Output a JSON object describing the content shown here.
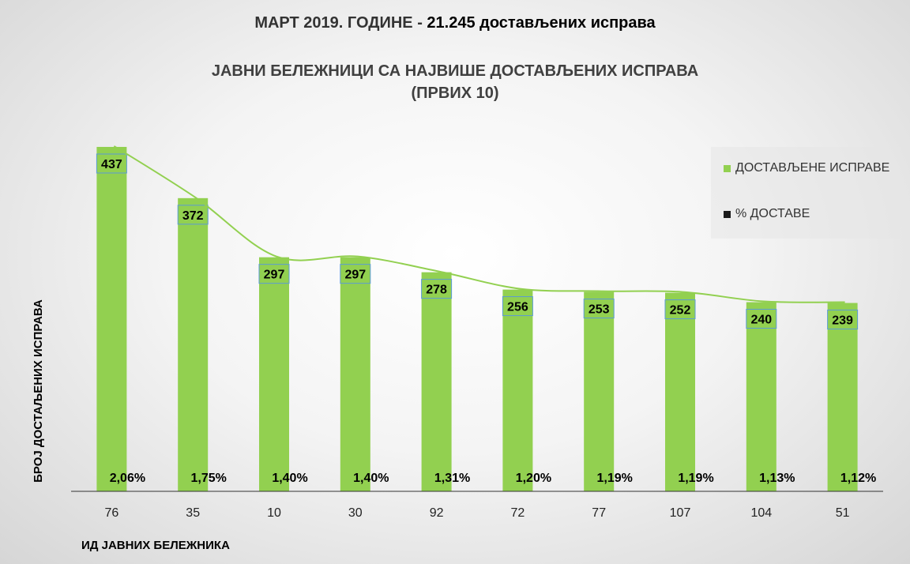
{
  "title": {
    "part1": "МАРТ 2019. ГОДИНЕ - ",
    "part2": "21.245 достављених исправа"
  },
  "subtitle": {
    "line1": "ЈАВНИ БЕЛЕЖНИЦИ СА НАЈВИШЕ ДОСТАВЉЕНИХ ИСПРАВА",
    "line2": "(ПРВИХ 10)"
  },
  "legend": {
    "items": [
      {
        "label": "ДОСТАВЉЕНЕ ИСПРАВЕ",
        "color": "#92d050"
      },
      {
        "label": "% ДОСТАВЕ",
        "color": "#1a1a1a"
      }
    ]
  },
  "chart_data": {
    "type": "bar",
    "title": "ЈАВНИ БЕЛЕЖНИЦИ СА НАЈВИШЕ ДОСТАВЉЕНИХ ИСПРАВА (ПРВИХ 10)",
    "xlabel": "ИД ЈАВНИХ БЕЛЕЖНИКА",
    "ylabel": "БРОЈ ДОСТАЉЕНИХ ИСПРАВА",
    "categories": [
      "76",
      "35",
      "10",
      "30",
      "92",
      "72",
      "77",
      "107",
      "104",
      "51"
    ],
    "series": [
      {
        "name": "ДОСТАВЉЕНЕ ИСПРАВЕ",
        "values": [
          437,
          372,
          297,
          297,
          278,
          256,
          253,
          252,
          240,
          239
        ],
        "color": "#92d050"
      },
      {
        "name": "% ДОСТАВЕ",
        "values": [
          2.06,
          1.75,
          1.4,
          1.4,
          1.31,
          1.2,
          1.19,
          1.19,
          1.13,
          1.12
        ],
        "labels": [
          "2,06%",
          "1,75%",
          "1,40%",
          "1,40%",
          "1,31%",
          "1,20%",
          "1,19%",
          "1,19%",
          "1,13%",
          "1,12%"
        ],
        "color": "#1a1a1a"
      }
    ],
    "trendline": true,
    "ylim": [
      0,
      445
    ],
    "grid": false,
    "legend_position": "top-right"
  }
}
